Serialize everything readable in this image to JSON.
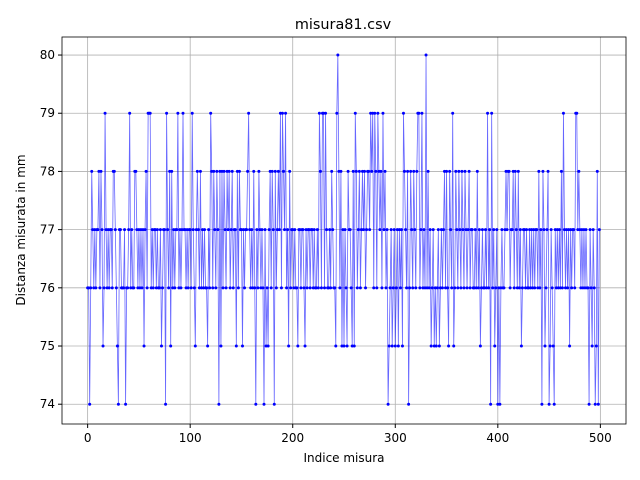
{
  "chart_data": {
    "type": "line",
    "title": "misura81.csv",
    "x_label": "Indice misura",
    "y_label": "Distanza misurata in mm",
    "series": [
      {
        "name": "misura81",
        "color": "#0000ff",
        "values": [
          76,
          76,
          74,
          76,
          78,
          77,
          76,
          77,
          76,
          77,
          77,
          78,
          76,
          78,
          77,
          75,
          76,
          79,
          77,
          76,
          77,
          76,
          77,
          77,
          76,
          78,
          78,
          77,
          76,
          75,
          74,
          77,
          77,
          76,
          76,
          76,
          77,
          74,
          76,
          76,
          77,
          79,
          76,
          77,
          76,
          76,
          78,
          78,
          77,
          76,
          77,
          76,
          77,
          76,
          77,
          75,
          77,
          78,
          76,
          79,
          79,
          79,
          76,
          77,
          76,
          77,
          77,
          76,
          77,
          76,
          76,
          77,
          75,
          76,
          77,
          77,
          74,
          79,
          77,
          76,
          78,
          75,
          78,
          76,
          77,
          76,
          77,
          77,
          79,
          76,
          77,
          76,
          77,
          79,
          77,
          77,
          76,
          77,
          76,
          77,
          77,
          76,
          79,
          77,
          76,
          75,
          77,
          78,
          77,
          76,
          78,
          76,
          77,
          76,
          77,
          76,
          76,
          75,
          77,
          76,
          79,
          78,
          76,
          78,
          77,
          76,
          78,
          77,
          74,
          78,
          75,
          78,
          76,
          78,
          77,
          76,
          78,
          77,
          78,
          76,
          77,
          78,
          76,
          77,
          77,
          75,
          78,
          76,
          78,
          77,
          77,
          75,
          77,
          76,
          77,
          77,
          78,
          79,
          77,
          76,
          77,
          76,
          78,
          76,
          74,
          77,
          76,
          78,
          77,
          76,
          77,
          76,
          74,
          77,
          75,
          76,
          75,
          77,
          78,
          76,
          78,
          77,
          74,
          78,
          76,
          77,
          78,
          77,
          79,
          76,
          79,
          78,
          77,
          79,
          76,
          77,
          75,
          78,
          76,
          77,
          77,
          76,
          77,
          76,
          76,
          75,
          77,
          77,
          76,
          77,
          77,
          76,
          75,
          77,
          76,
          77,
          77,
          76,
          77,
          77,
          76,
          77,
          76,
          76,
          77,
          76,
          79,
          78,
          76,
          79,
          79,
          76,
          79,
          77,
          76,
          76,
          77,
          76,
          78,
          77,
          76,
          76,
          75,
          79,
          80,
          78,
          76,
          78,
          75,
          77,
          75,
          77,
          76,
          75,
          78,
          77,
          77,
          76,
          75,
          78,
          75,
          79,
          78,
          76,
          77,
          78,
          76,
          77,
          78,
          77,
          78,
          76,
          77,
          78,
          78,
          77,
          79,
          78,
          79,
          76,
          79,
          78,
          76,
          79,
          78,
          77,
          78,
          76,
          79,
          77,
          78,
          76,
          77,
          74,
          75,
          76,
          77,
          75,
          76,
          77,
          75,
          76,
          77,
          75,
          77,
          76,
          77,
          75,
          79,
          78,
          77,
          76,
          78,
          74,
          76,
          78,
          77,
          76,
          78,
          77,
          76,
          78,
          79,
          79,
          76,
          77,
          79,
          76,
          77,
          76,
          80,
          76,
          78,
          76,
          77,
          75,
          76,
          77,
          75,
          76,
          75,
          76,
          77,
          75,
          76,
          77,
          76,
          77,
          78,
          76,
          78,
          76,
          75,
          78,
          77,
          76,
          79,
          75,
          76,
          78,
          77,
          76,
          78,
          77,
          76,
          78,
          77,
          76,
          78,
          77,
          76,
          77,
          78,
          76,
          77,
          77,
          76,
          76,
          77,
          76,
          78,
          76,
          77,
          75,
          76,
          77,
          76,
          76,
          77,
          76,
          79,
          76,
          77,
          74,
          79,
          76,
          77,
          75,
          76,
          77,
          74,
          76,
          74,
          76,
          77,
          76,
          76,
          77,
          78,
          77,
          78,
          78,
          76,
          77,
          77,
          78,
          76,
          78,
          77,
          76,
          78,
          76,
          77,
          75,
          76,
          77,
          77,
          76,
          77,
          76,
          76,
          77,
          76,
          77,
          76,
          77,
          76,
          77,
          77,
          76,
          78,
          76,
          77,
          74,
          78,
          77,
          75,
          76,
          77,
          78,
          74,
          75,
          77,
          76,
          75,
          74,
          77,
          76,
          77,
          76,
          77,
          76,
          78,
          76,
          79,
          77,
          76,
          77,
          76,
          77,
          75,
          77,
          76,
          77,
          77,
          76,
          79,
          79,
          77,
          78,
          77,
          76,
          77,
          76,
          77,
          76,
          77,
          76,
          76,
          74,
          77,
          76,
          75,
          77,
          76,
          74,
          75,
          78,
          74,
          77
        ]
      }
    ],
    "xlim": [
      -25,
      525
    ],
    "xticks": [
      0,
      100,
      200,
      300,
      400,
      500
    ],
    "ylim": [
      73.66,
      80.31
    ],
    "yticks": [
      74,
      75,
      76,
      77,
      78,
      79,
      80
    ],
    "grid": true
  }
}
